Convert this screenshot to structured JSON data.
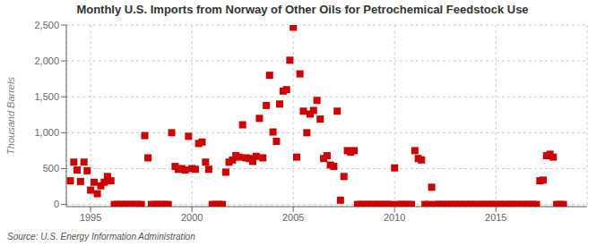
{
  "chart_data": {
    "type": "scatter",
    "title": "Monthly U.S. Imports from Norway of Other Oils for Petrochemical Feedstock Use",
    "ylabel": "Thousand Barrels",
    "source": "Source: U.S. Energy Information Administration",
    "color": "#cc0000",
    "marker": "square",
    "grid": true,
    "xlim": [
      1993.8,
      2019.5
    ],
    "ylim": [
      -30,
      2500
    ],
    "xticks": [
      1995,
      2000,
      2005,
      2010,
      2015
    ],
    "yticks": [
      0,
      500,
      {
        "value": 1000,
        "label": "1,000"
      },
      {
        "value": 1500,
        "label": "1,500"
      },
      {
        "value": 2000,
        "label": "2,000"
      },
      {
        "value": 2500,
        "label": "2,500"
      }
    ],
    "x": [
      1994.0,
      1994.17,
      1994.33,
      1994.5,
      1994.67,
      1994.83,
      1995.0,
      1995.17,
      1995.33,
      1995.5,
      1995.67,
      1995.83,
      1996.0,
      1996.17,
      1996.33,
      1996.5,
      1996.67,
      1996.83,
      1997.0,
      1997.17,
      1997.33,
      1997.5,
      1997.67,
      1997.83,
      1998.0,
      1998.17,
      1998.33,
      1998.5,
      1998.67,
      1998.83,
      1999.0,
      1999.17,
      1999.33,
      1999.5,
      1999.67,
      1999.83,
      2000.0,
      2000.17,
      2000.33,
      2000.5,
      2000.67,
      2000.83,
      2001.0,
      2001.17,
      2001.33,
      2001.5,
      2001.67,
      2001.83,
      2002.0,
      2002.17,
      2002.33,
      2002.5,
      2002.67,
      2002.83,
      2003.0,
      2003.17,
      2003.33,
      2003.5,
      2003.67,
      2003.83,
      2004.0,
      2004.17,
      2004.33,
      2004.5,
      2004.67,
      2004.83,
      2005.0,
      2005.17,
      2005.33,
      2005.5,
      2005.67,
      2005.83,
      2006.0,
      2006.17,
      2006.33,
      2006.5,
      2006.67,
      2006.83,
      2007.0,
      2007.17,
      2007.33,
      2007.5,
      2007.67,
      2007.83,
      2008.0,
      2008.17,
      2008.33,
      2008.5,
      2008.67,
      2008.83,
      2009.0,
      2009.17,
      2009.33,
      2009.5,
      2009.67,
      2009.83,
      2010.0,
      2010.17,
      2010.33,
      2010.5,
      2010.67,
      2010.83,
      2011.0,
      2011.17,
      2011.33,
      2011.5,
      2011.67,
      2011.83,
      2012.0,
      2012.17,
      2012.33,
      2012.5,
      2012.67,
      2012.83,
      2013.0,
      2013.17,
      2013.33,
      2013.5,
      2013.67,
      2013.83,
      2014.0,
      2014.17,
      2014.33,
      2014.5,
      2014.67,
      2014.83,
      2015.0,
      2015.17,
      2015.33,
      2015.5,
      2015.67,
      2015.83,
      2016.0,
      2016.17,
      2016.33,
      2016.5,
      2016.67,
      2016.83,
      2017.0,
      2017.17,
      2017.33,
      2017.5,
      2017.67,
      2017.83,
      2018.0,
      2018.17,
      2018.33
    ],
    "values": [
      330,
      590,
      480,
      320,
      590,
      470,
      200,
      310,
      150,
      260,
      310,
      390,
      330,
      0,
      0,
      0,
      0,
      0,
      0,
      0,
      0,
      0,
      960,
      650,
      0,
      0,
      0,
      0,
      0,
      0,
      1000,
      530,
      490,
      500,
      480,
      950,
      500,
      490,
      850,
      870,
      590,
      490,
      0,
      0,
      0,
      0,
      450,
      590,
      620,
      680,
      660,
      1110,
      650,
      640,
      600,
      670,
      1200,
      650,
      1380,
      1800,
      1010,
      880,
      1400,
      1580,
      1600,
      2010,
      2470,
      660,
      1820,
      1300,
      1000,
      1260,
      1310,
      1450,
      1190,
      640,
      680,
      550,
      530,
      1300,
      60,
      390,
      750,
      730,
      750,
      0,
      0,
      0,
      0,
      0,
      0,
      0,
      0,
      0,
      0,
      0,
      510,
      0,
      0,
      0,
      0,
      0,
      750,
      640,
      620,
      0,
      0,
      240,
      0,
      0,
      0,
      0,
      0,
      0,
      0,
      0,
      0,
      0,
      0,
      0,
      0,
      0,
      0,
      0,
      0,
      0,
      0,
      0,
      0,
      0,
      0,
      0,
      0,
      0,
      0,
      0,
      0,
      0,
      0,
      330,
      340,
      680,
      700,
      660,
      0,
      0,
      0
    ]
  }
}
